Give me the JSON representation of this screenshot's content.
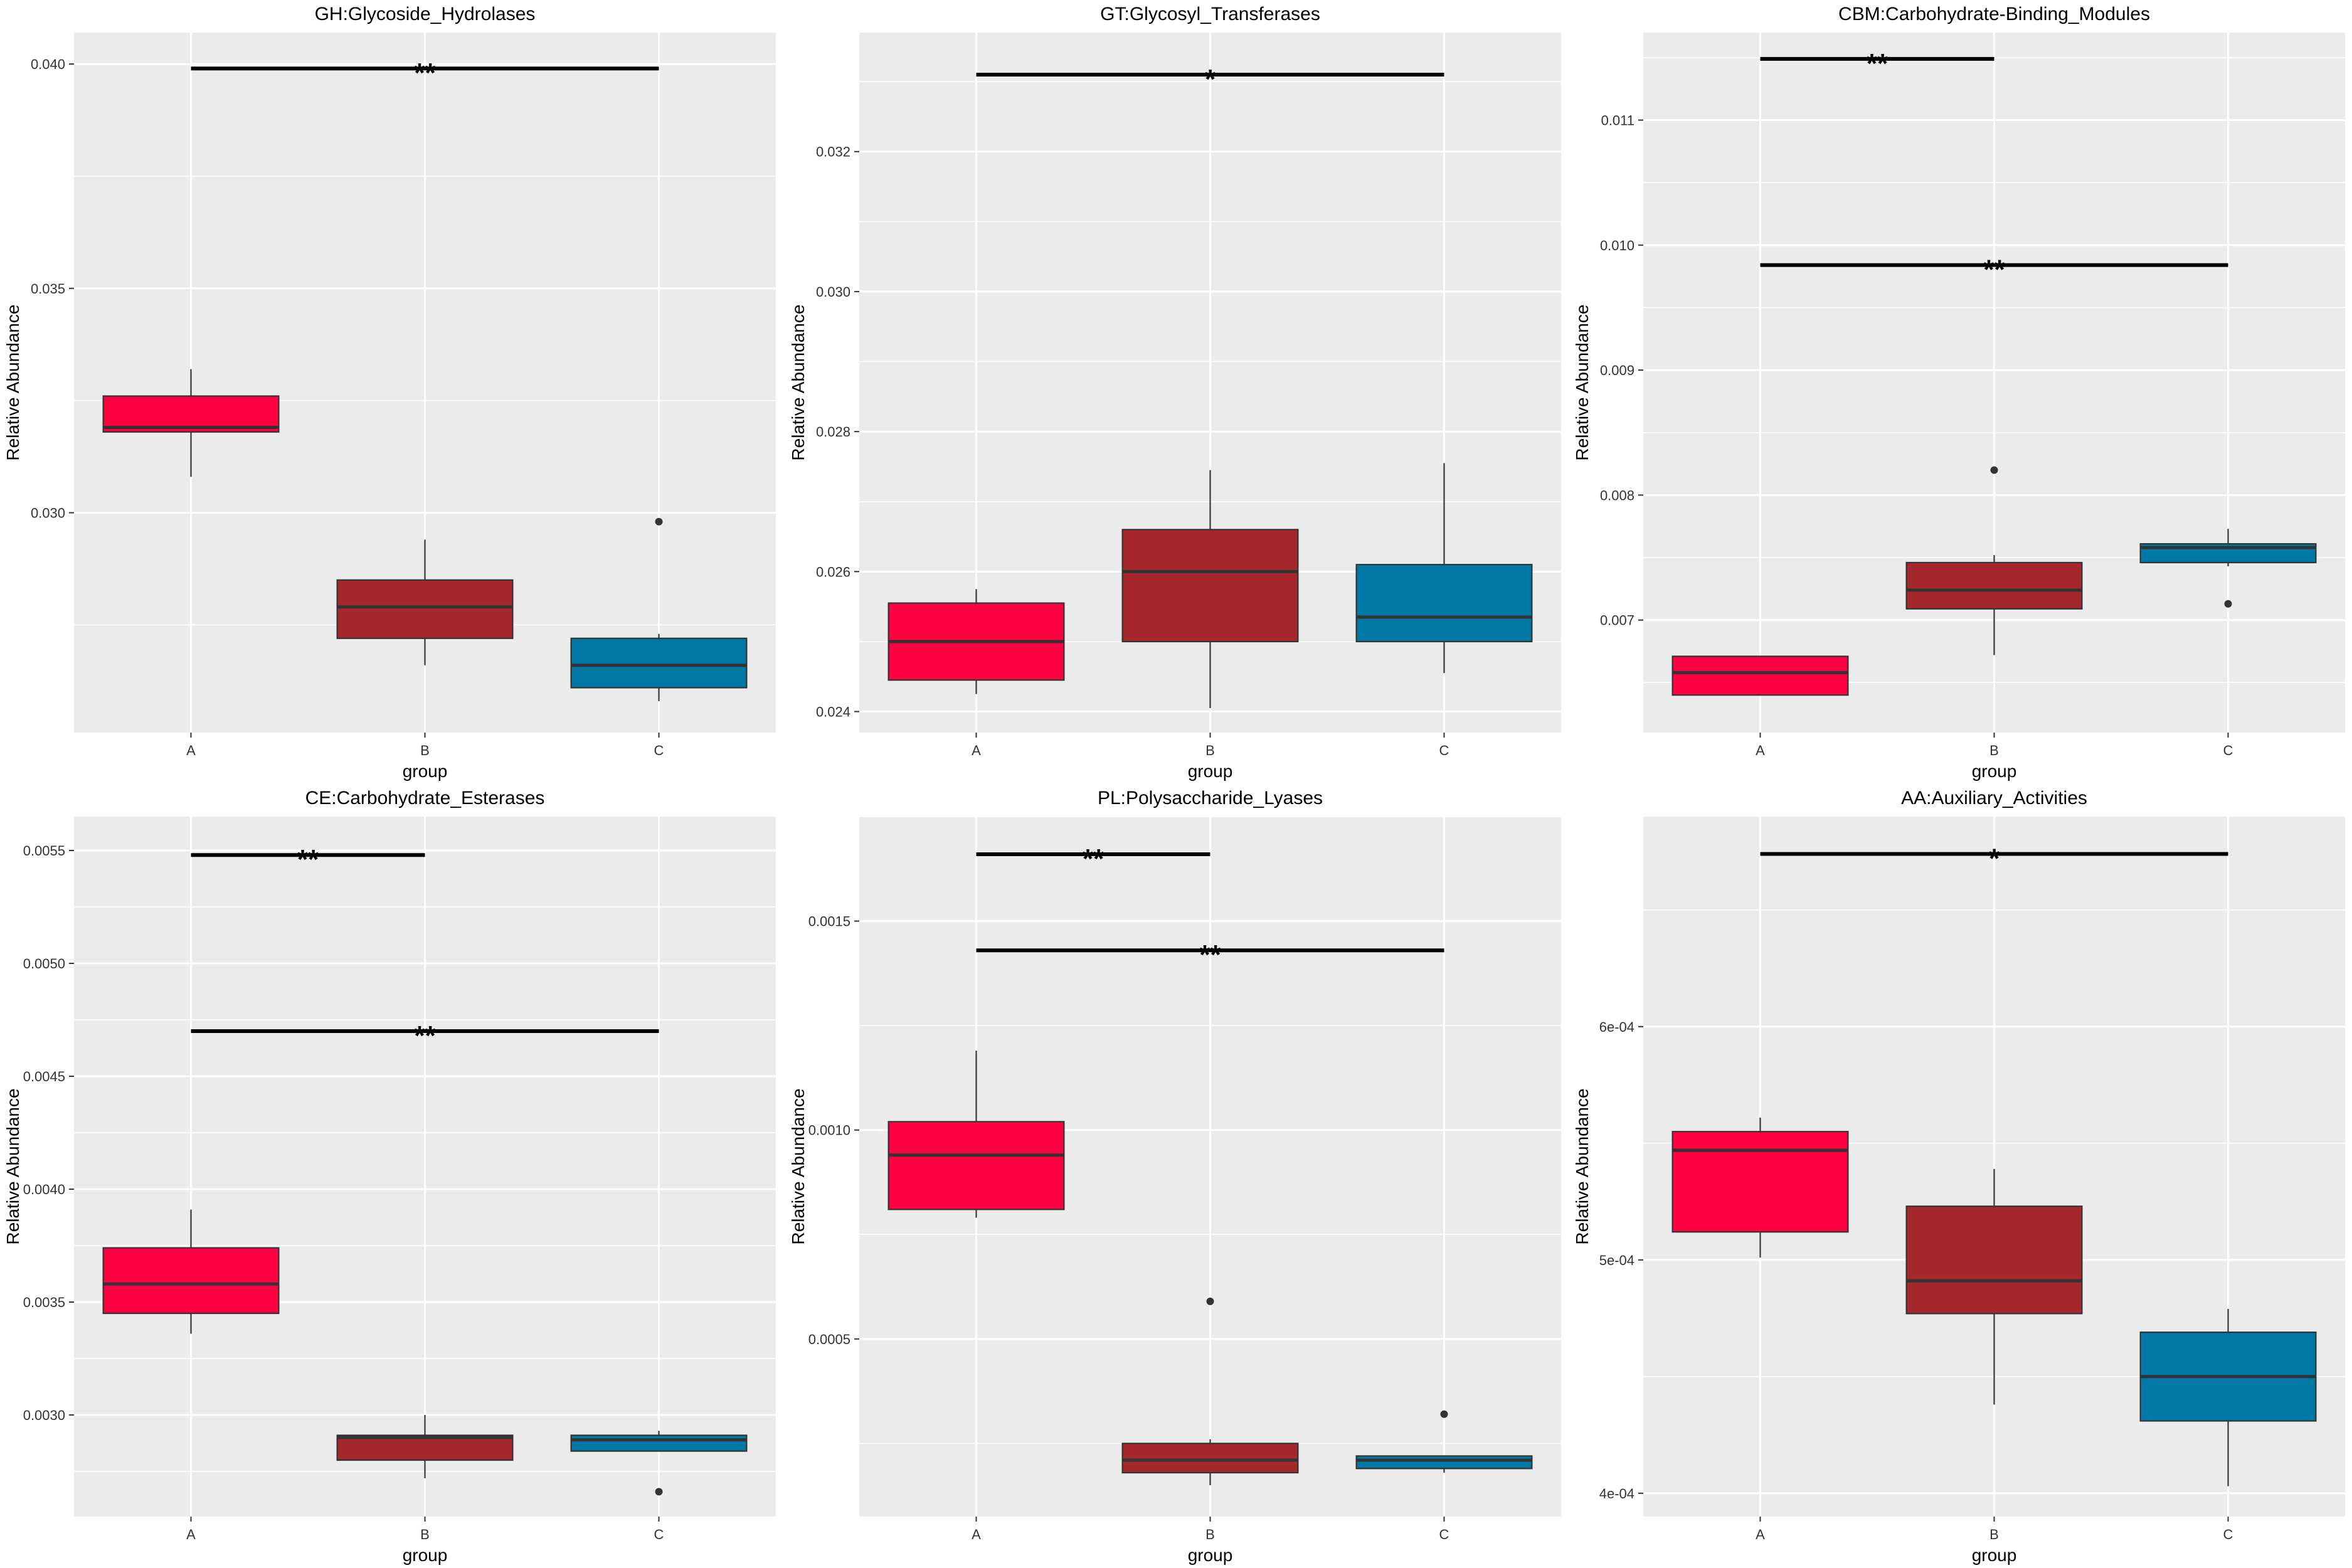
{
  "figure": {
    "background": "#ffffff",
    "panel_bg": "#ebebeb",
    "grid_color": "#ffffff"
  },
  "group_colors": {
    "A": "#ff0040",
    "B": "#a6282c",
    "C": "#0078a6"
  },
  "chart_data": [
    {
      "type": "boxplot",
      "title": "GH:Glycoside_Hydrolases",
      "xlabel": "group",
      "ylabel": "Relative Abundance",
      "categories": [
        "A",
        "B",
        "C"
      ],
      "ylim": [
        0.0251,
        0.0407
      ],
      "yticks": [
        0.03,
        0.035,
        0.04
      ],
      "ytick_labels": [
        "0.030",
        "0.035",
        "0.040"
      ],
      "boxes": [
        {
          "group": "A",
          "whisker_low": 0.0308,
          "q1": 0.0318,
          "median": 0.0319,
          "q3": 0.0326,
          "whisker_high": 0.0332,
          "outliers": []
        },
        {
          "group": "B",
          "whisker_low": 0.0266,
          "q1": 0.0272,
          "median": 0.0279,
          "q3": 0.0285,
          "whisker_high": 0.0294,
          "outliers": []
        },
        {
          "group": "C",
          "whisker_low": 0.0258,
          "q1": 0.0261,
          "median": 0.0266,
          "q3": 0.0272,
          "whisker_high": 0.0273,
          "outliers": [
            0.0298
          ]
        }
      ],
      "significance": [
        {
          "from": "A",
          "to": "C",
          "y": 0.0399,
          "label": "**"
        }
      ]
    },
    {
      "type": "boxplot",
      "title": "GT:Glycosyl_Transferases",
      "xlabel": "group",
      "ylabel": "Relative Abundance",
      "categories": [
        "A",
        "B",
        "C"
      ],
      "ylim": [
        0.0237,
        0.0337
      ],
      "yticks": [
        0.024,
        0.026,
        0.028,
        0.03,
        0.032
      ],
      "ytick_labels": [
        "0.024",
        "0.026",
        "0.028",
        "0.030",
        "0.032"
      ],
      "boxes": [
        {
          "group": "A",
          "whisker_low": 0.02425,
          "q1": 0.02445,
          "median": 0.025,
          "q3": 0.02555,
          "whisker_high": 0.02575,
          "outliers": []
        },
        {
          "group": "B",
          "whisker_low": 0.02405,
          "q1": 0.025,
          "median": 0.026,
          "q3": 0.0266,
          "whisker_high": 0.02745,
          "outliers": []
        },
        {
          "group": "C",
          "whisker_low": 0.02455,
          "q1": 0.025,
          "median": 0.02535,
          "q3": 0.0261,
          "whisker_high": 0.02755,
          "outliers": []
        }
      ],
      "significance": [
        {
          "from": "A",
          "to": "C",
          "y": 0.0331,
          "label": "*"
        }
      ]
    },
    {
      "type": "boxplot",
      "title": "CBM:Carbohydrate-Binding_Modules",
      "xlabel": "group",
      "ylabel": "Relative Abundance",
      "categories": [
        "A",
        "B",
        "C"
      ],
      "ylim": [
        0.0061,
        0.0117
      ],
      "yticks": [
        0.007,
        0.008,
        0.009,
        0.01,
        0.011
      ],
      "ytick_labels": [
        "0.007",
        "0.008",
        "0.009",
        "0.010",
        "0.011"
      ],
      "boxes": [
        {
          "group": "A",
          "whisker_low": 0.0064,
          "q1": 0.0064,
          "median": 0.00658,
          "q3": 0.00671,
          "whisker_high": 0.00671,
          "outliers": []
        },
        {
          "group": "B",
          "whisker_low": 0.00672,
          "q1": 0.00709,
          "median": 0.00724,
          "q3": 0.00746,
          "whisker_high": 0.00752,
          "outliers": [
            0.0082
          ]
        },
        {
          "group": "C",
          "whisker_low": 0.00743,
          "q1": 0.00746,
          "median": 0.00758,
          "q3": 0.00761,
          "whisker_high": 0.00773,
          "outliers": [
            0.00713
          ]
        }
      ],
      "significance": [
        {
          "from": "A",
          "to": "B",
          "y": 0.01149,
          "label": "**"
        },
        {
          "from": "A",
          "to": "C",
          "y": 0.00984,
          "label": "**"
        }
      ]
    },
    {
      "type": "boxplot",
      "title": "CE:Carbohydrate_Esterases",
      "xlabel": "group",
      "ylabel": "Relative Abundance",
      "categories": [
        "A",
        "B",
        "C"
      ],
      "ylim": [
        0.00255,
        0.00565
      ],
      "yticks": [
        0.003,
        0.0035,
        0.004,
        0.0045,
        0.005,
        0.0055
      ],
      "ytick_labels": [
        "0.0030",
        "0.0035",
        "0.0040",
        "0.0045",
        "0.0050",
        "0.0055"
      ],
      "boxes": [
        {
          "group": "A",
          "whisker_low": 0.00336,
          "q1": 0.00345,
          "median": 0.00358,
          "q3": 0.00374,
          "whisker_high": 0.00391,
          "outliers": []
        },
        {
          "group": "B",
          "whisker_low": 0.00272,
          "q1": 0.0028,
          "median": 0.0029,
          "q3": 0.00291,
          "whisker_high": 0.003,
          "outliers": []
        },
        {
          "group": "C",
          "whisker_low": 0.00284,
          "q1": 0.00284,
          "median": 0.00289,
          "q3": 0.00291,
          "whisker_high": 0.00293,
          "outliers": [
            0.00266
          ]
        }
      ],
      "significance": [
        {
          "from": "A",
          "to": "B",
          "y": 0.00548,
          "label": "**"
        },
        {
          "from": "A",
          "to": "C",
          "y": 0.0047,
          "label": "**"
        }
      ]
    },
    {
      "type": "boxplot",
      "title": "PL:Polysaccharide_Lyases",
      "xlabel": "group",
      "ylabel": "Relative Abundance",
      "categories": [
        "A",
        "B",
        "C"
      ],
      "ylim": [
        7.5e-05,
        0.00175
      ],
      "yticks": [
        0.0005,
        0.001,
        0.0015
      ],
      "ytick_labels": [
        "0.0005",
        "0.0010",
        "0.0015"
      ],
      "boxes": [
        {
          "group": "A",
          "whisker_low": 0.00079,
          "q1": 0.00081,
          "median": 0.00094,
          "q3": 0.00102,
          "whisker_high": 0.00119,
          "outliers": []
        },
        {
          "group": "B",
          "whisker_low": 0.00015,
          "q1": 0.00018,
          "median": 0.00021,
          "q3": 0.00025,
          "whisker_high": 0.00026,
          "outliers": [
            0.00059
          ]
        },
        {
          "group": "C",
          "whisker_low": 0.00018,
          "q1": 0.00019,
          "median": 0.00021,
          "q3": 0.00022,
          "whisker_high": 0.00022,
          "outliers": [
            0.00032
          ]
        }
      ],
      "significance": [
        {
          "from": "A",
          "to": "B",
          "y": 0.00166,
          "label": "**"
        },
        {
          "from": "A",
          "to": "C",
          "y": 0.00143,
          "label": "**"
        }
      ]
    },
    {
      "type": "boxplot",
      "title": "AA:Auxiliary_Activities",
      "xlabel": "group",
      "ylabel": "Relative Abundance",
      "categories": [
        "A",
        "B",
        "C"
      ],
      "ylim": [
        0.00039,
        0.00069
      ],
      "yticks": [
        0.0004,
        0.0005,
        0.0006
      ],
      "ytick_labels": [
        "4e-04",
        "5e-04",
        "6e-04"
      ],
      "boxes": [
        {
          "group": "A",
          "whisker_low": 0.000501,
          "q1": 0.000512,
          "median": 0.000547,
          "q3": 0.000555,
          "whisker_high": 0.000561,
          "outliers": []
        },
        {
          "group": "B",
          "whisker_low": 0.000438,
          "q1": 0.000477,
          "median": 0.000491,
          "q3": 0.000523,
          "whisker_high": 0.000539,
          "outliers": []
        },
        {
          "group": "C",
          "whisker_low": 0.000403,
          "q1": 0.000431,
          "median": 0.00045,
          "q3": 0.000469,
          "whisker_high": 0.000479,
          "outliers": []
        }
      ],
      "significance": [
        {
          "from": "A",
          "to": "C",
          "y": 0.000674,
          "label": "*"
        }
      ]
    }
  ]
}
